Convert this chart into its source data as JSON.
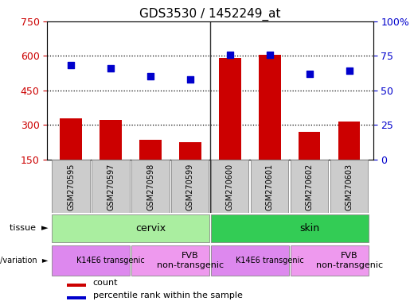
{
  "title": "GDS3530 / 1452249_at",
  "samples": [
    "GSM270595",
    "GSM270597",
    "GSM270598",
    "GSM270599",
    "GSM270600",
    "GSM270601",
    "GSM270602",
    "GSM270603"
  ],
  "counts": [
    330,
    320,
    235,
    225,
    590,
    605,
    270,
    315
  ],
  "percentile_ranks": [
    68,
    66,
    60,
    58,
    76,
    76,
    62,
    64
  ],
  "ylim_left": [
    150,
    750
  ],
  "ylim_right": [
    0,
    100
  ],
  "yticks_left": [
    150,
    300,
    450,
    600,
    750
  ],
  "yticks_right": [
    0,
    25,
    50,
    75,
    100
  ],
  "ytick_labels_right": [
    "0",
    "25",
    "50",
    "75",
    "100%"
  ],
  "bar_color": "#cc0000",
  "scatter_color": "#0000cc",
  "left_axis_color": "#cc0000",
  "right_axis_color": "#0000cc",
  "grid_dotted_at": [
    300,
    450,
    600
  ],
  "tissue_labels": [
    {
      "label": "cervix",
      "start": 0,
      "end": 4,
      "color": "#aaeea0"
    },
    {
      "label": "skin",
      "start": 4,
      "end": 8,
      "color": "#33cc55"
    }
  ],
  "genotype_labels": [
    {
      "label": "K14E6 transgenic",
      "start": 0,
      "end": 2,
      "color": "#dd88ee",
      "fontsize": 7
    },
    {
      "label": "FVB\nnon-transgenic",
      "start": 2,
      "end": 4,
      "color": "#ee99ee",
      "fontsize": 8
    },
    {
      "label": "K14E6 transgenic",
      "start": 4,
      "end": 6,
      "color": "#dd88ee",
      "fontsize": 7
    },
    {
      "label": "FVB\nnon-transgenic",
      "start": 6,
      "end": 8,
      "color": "#ee99ee",
      "fontsize": 8
    }
  ],
  "legend_items": [
    {
      "label": "count",
      "color": "#cc0000"
    },
    {
      "label": "percentile rank within the sample",
      "color": "#0000cc"
    }
  ],
  "bg_color": "#ffffff",
  "ticklabel_box_color": "#cccccc",
  "border_color": "#888888",
  "separator_color": "#333333"
}
